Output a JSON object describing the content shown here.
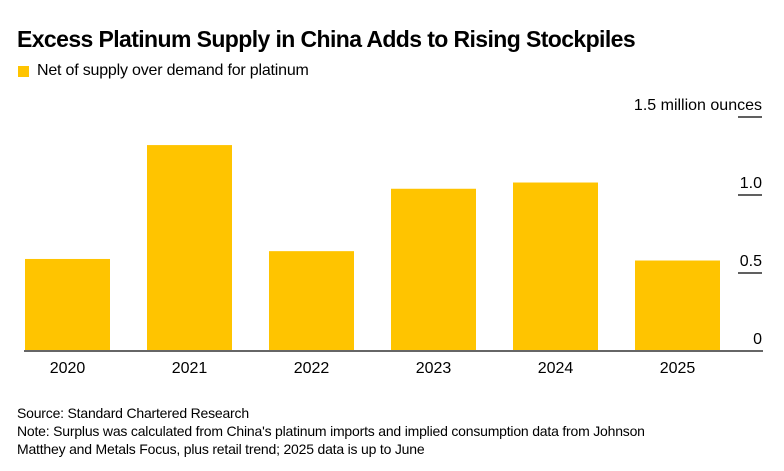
{
  "header": {
    "title": "Excess Platinum Supply in China Adds to Rising Stockpiles"
  },
  "legend": {
    "items": [
      {
        "label": "Net of supply over demand for platinum",
        "color": "#FFC400"
      }
    ]
  },
  "footer": {
    "source": "Source: Standard Chartered Research",
    "note_line1": "Note: Surplus was calculated from China's platinum imports and implied consumption data from Johnson",
    "note_line2": "Matthey and Metals Focus, plus retail trend; 2025 data is up to June"
  },
  "colors": {
    "bar": "#FFC400",
    "baseline": "#666666",
    "tick": "#000000"
  },
  "chart_data": {
    "type": "bar",
    "title": "Excess Platinum Supply in China Adds to Rising Stockpiles",
    "xlabel": "",
    "ylabel": "million ounces",
    "categories": [
      "2020",
      "2021",
      "2022",
      "2023",
      "2024",
      "2025"
    ],
    "series": [
      {
        "name": "Net of supply over demand for platinum",
        "values": [
          0.59,
          1.32,
          0.64,
          1.04,
          1.08,
          0.58
        ]
      }
    ],
    "ylim": [
      0,
      1.5
    ],
    "yticks": [
      {
        "value": 0,
        "label": "0"
      },
      {
        "value": 0.5,
        "label": "0.5"
      },
      {
        "value": 1.0,
        "label": "1.0"
      },
      {
        "value": 1.5,
        "label": "1.5 million ounces"
      }
    ],
    "grid": false,
    "legend_position": "top-left",
    "y_axis_position": "right"
  }
}
